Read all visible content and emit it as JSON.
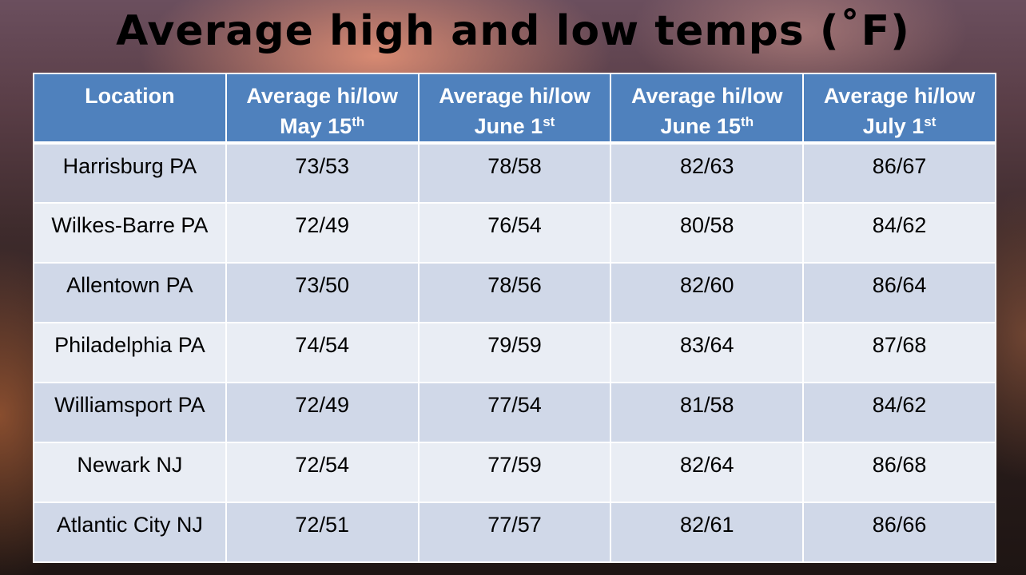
{
  "title": "Average high and low temps (˚F)",
  "headers": [
    {
      "line1": "Location",
      "line2": "",
      "sup": ""
    },
    {
      "line1": "Average hi/low",
      "line2": "May 15",
      "sup": "th"
    },
    {
      "line1": "Average hi/low",
      "line2": "June 1",
      "sup": "st"
    },
    {
      "line1": "Average hi/low",
      "line2": "June 15",
      "sup": "th"
    },
    {
      "line1": "Average hi/low",
      "line2": "July 1",
      "sup": "st"
    }
  ],
  "rows": [
    [
      "Harrisburg PA",
      "73/53",
      "78/58",
      "82/63",
      "86/67"
    ],
    [
      "Wilkes-Barre PA",
      "72/49",
      "76/54",
      "80/58",
      "84/62"
    ],
    [
      "Allentown PA",
      "73/50",
      "78/56",
      "82/60",
      "86/64"
    ],
    [
      "Philadelphia PA",
      "74/54",
      "79/59",
      "83/64",
      "87/68"
    ],
    [
      "Williamsport PA",
      "72/49",
      "77/54",
      "81/58",
      "84/62"
    ],
    [
      "Newark NJ",
      "72/54",
      "77/59",
      "82/64",
      "86/68"
    ],
    [
      "Atlantic City NJ",
      "72/51",
      "77/57",
      "82/61",
      "86/66"
    ]
  ],
  "colors": {
    "header_bg": "#4f81bd",
    "row_odd_bg": "#d0d8e8",
    "row_even_bg": "#e9edf4"
  }
}
